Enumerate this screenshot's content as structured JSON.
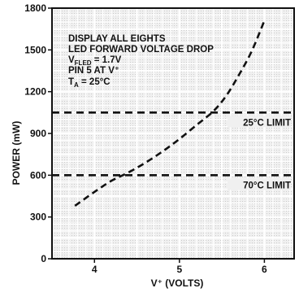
{
  "chart_data": {
    "type": "line",
    "xlabel": "V⁺ (VOLTS)",
    "ylabel": "POWER (mW)",
    "xlim": [
      3.5,
      6.35
    ],
    "ylim": [
      0,
      1800
    ],
    "x_ticks": [
      4,
      5,
      6
    ],
    "y_ticks": [
      0,
      300,
      600,
      900,
      1200,
      1500,
      1800
    ],
    "grid": true,
    "series": [
      {
        "style": "dashed",
        "points": [
          [
            3.77,
            380
          ],
          [
            4.0,
            480
          ],
          [
            4.2,
            560
          ],
          [
            4.4,
            620
          ],
          [
            4.6,
            690
          ],
          [
            4.8,
            770
          ],
          [
            5.0,
            860
          ],
          [
            5.2,
            960
          ],
          [
            5.4,
            1060
          ],
          [
            5.55,
            1170
          ],
          [
            5.7,
            1320
          ],
          [
            5.85,
            1490
          ],
          [
            6.0,
            1710
          ]
        ]
      }
    ],
    "limits": [
      {
        "value": 1050,
        "label": "25°C LIMIT"
      },
      {
        "value": 600,
        "label": "70°C LIMIT"
      }
    ],
    "annotations": [
      "DISPLAY ALL EIGHTS",
      "LED FORWARD VOLTAGE DROP",
      "V_FLED = 1.7V",
      "PIN 5 AT V⁺",
      "T_A = 25°C"
    ]
  }
}
